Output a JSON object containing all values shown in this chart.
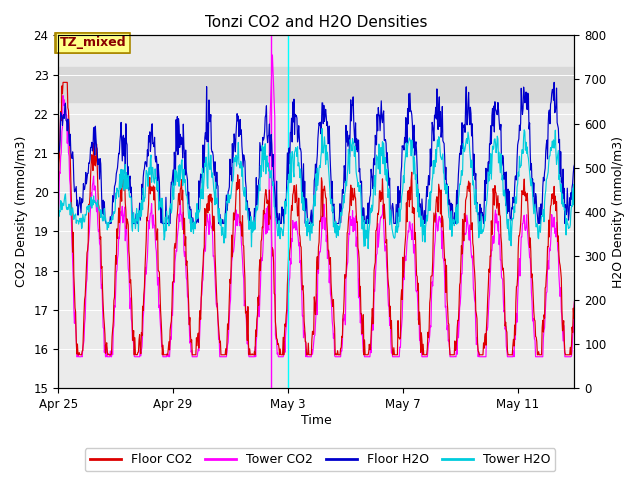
{
  "title": "Tonzi CO2 and H2O Densities",
  "xlabel": "Time",
  "ylabel_left": "CO2 Density (mmol/m3)",
  "ylabel_right": "H2O Density (mmol/m3)",
  "ylim_left": [
    15.0,
    24.0
  ],
  "ylim_right": [
    0,
    800
  ],
  "yticks_left": [
    15.0,
    16.0,
    17.0,
    18.0,
    19.0,
    20.0,
    21.0,
    22.0,
    23.0,
    24.0
  ],
  "yticks_right": [
    0,
    100,
    200,
    300,
    400,
    500,
    600,
    700,
    800
  ],
  "xtick_days_offset": [
    0,
    4,
    8,
    12,
    16
  ],
  "shaded_band_co2": [
    22.3,
    23.2
  ],
  "vline_magenta_day": 7.4,
  "vline_cyan_day": 8.0,
  "colors": {
    "floor_co2": "#dd0000",
    "tower_co2": "#ff00ff",
    "floor_h2o": "#0000cc",
    "tower_h2o": "#00ccdd"
  },
  "legend_labels": [
    "Floor CO2",
    "Tower CO2",
    "Floor H2O",
    "Tower H2O"
  ],
  "plot_bg_color": "#ebebeb",
  "shaded_color": "#d8d8d8",
  "linewidth": 0.85
}
